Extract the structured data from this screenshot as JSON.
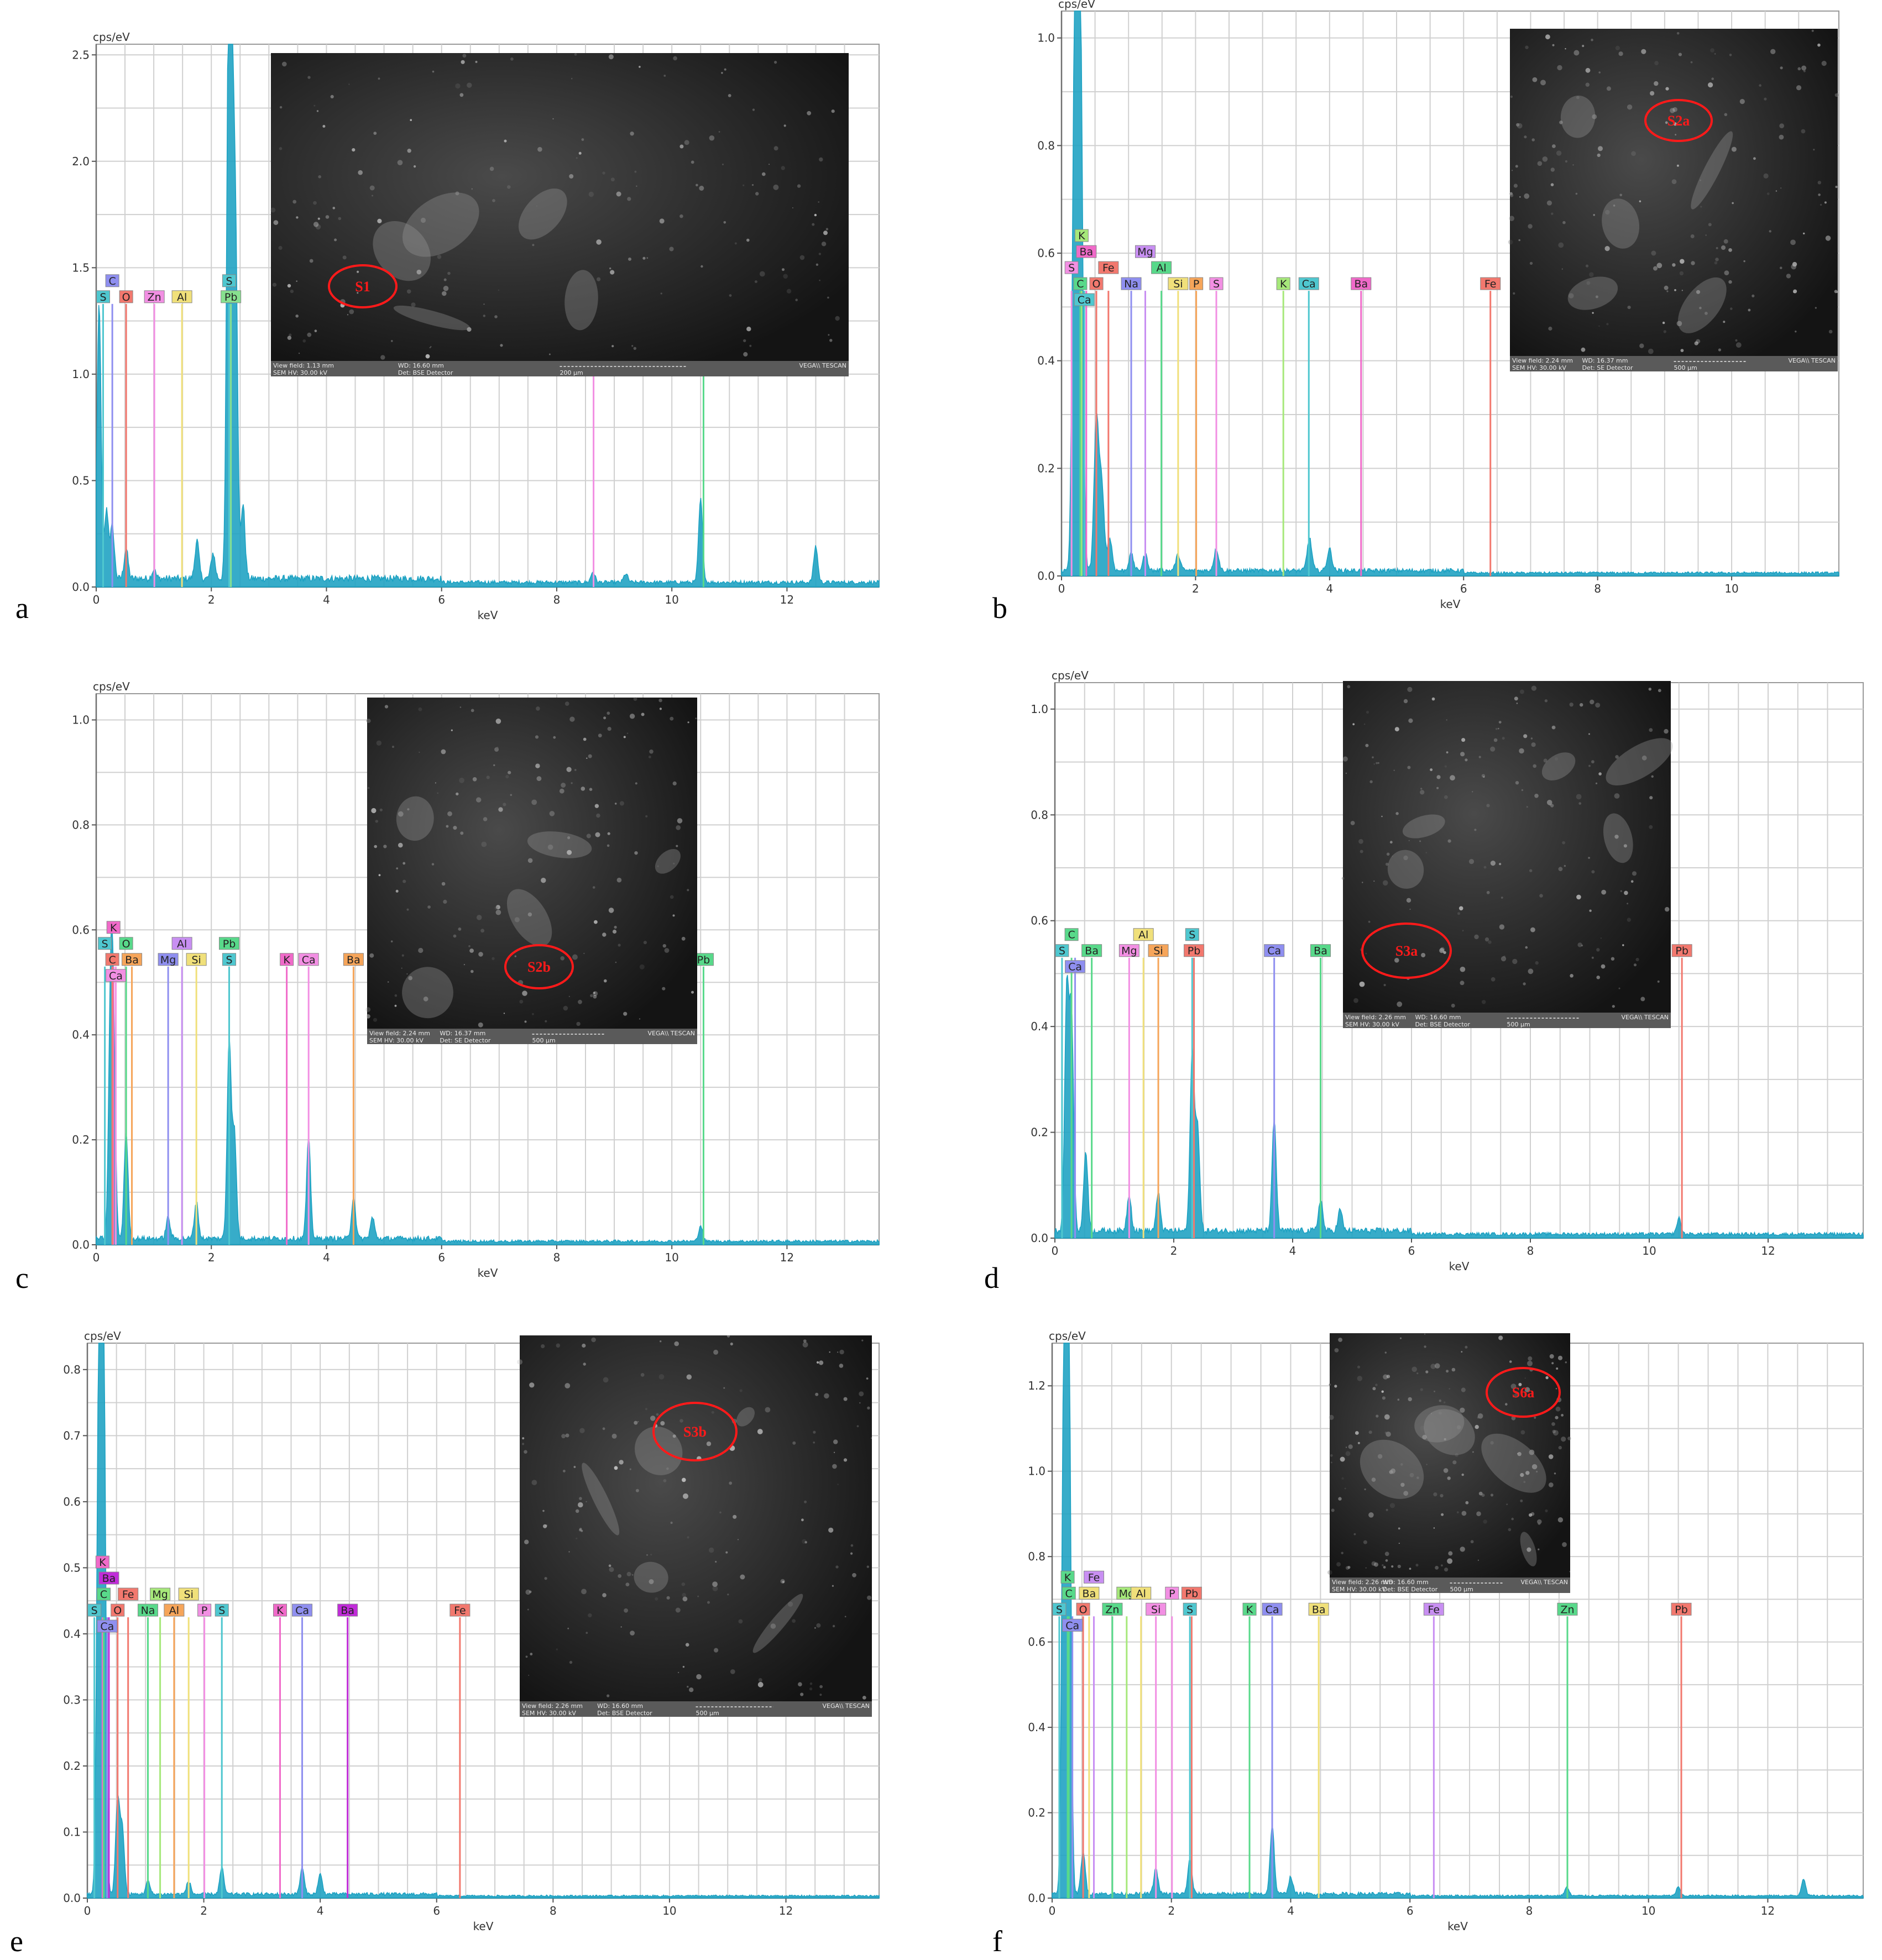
{
  "chart_data": [
    {
      "type": "line",
      "panel_label": "a",
      "ylabel": "cps/eV",
      "xlabel": "keV",
      "xlim": [
        0,
        13.6
      ],
      "ylim": [
        0,
        2.55
      ],
      "xticks": [
        0,
        2,
        4,
        6,
        8,
        10,
        12
      ],
      "yticks": [
        0.0,
        0.5,
        1.0,
        1.5,
        2.0,
        2.5
      ],
      "ytick_labels": [
        "0.0",
        "0.5",
        "1.0",
        "1.5",
        "2.0",
        "2.5"
      ],
      "spectrum_peaks": [
        [
          0.05,
          1.28
        ],
        [
          0.18,
          0.32
        ],
        [
          0.28,
          0.24
        ],
        [
          0.52,
          0.14
        ],
        [
          1.0,
          0.04
        ],
        [
          1.75,
          0.18
        ],
        [
          2.03,
          0.12
        ],
        [
          2.3,
          2.39
        ],
        [
          2.35,
          2.1
        ],
        [
          2.42,
          1.6
        ],
        [
          2.55,
          0.35
        ],
        [
          8.63,
          0.05
        ],
        [
          9.2,
          0.04
        ],
        [
          10.5,
          0.39
        ],
        [
          12.5,
          0.17
        ]
      ],
      "baseline": 0.04,
      "element_markers": [
        {
          "label": "S",
          "keV": 0.12,
          "row": 0,
          "color": "#4fc7cf"
        },
        {
          "label": "C",
          "keV": 0.28,
          "row": 1,
          "color": "#8f8ff0"
        },
        {
          "label": "O",
          "keV": 0.52,
          "row": 0,
          "color": "#f2786e"
        },
        {
          "label": "Zn",
          "keV": 1.01,
          "row": 0,
          "color": "#f28fe3"
        },
        {
          "label": "Al",
          "keV": 1.49,
          "row": 0,
          "color": "#f0e07a"
        },
        {
          "label": "S",
          "keV": 2.31,
          "row": 1,
          "color": "#4fc7cf"
        },
        {
          "label": "Pb",
          "keV": 2.34,
          "row": 0,
          "color": "#87e08f"
        },
        {
          "label": "Zn",
          "keV": 8.64,
          "row": 0,
          "color": "#f28fe3"
        },
        {
          "label": "Pb",
          "keV": 10.55,
          "row": 0,
          "color": "#58d98a"
        }
      ],
      "marker_y": 1.33,
      "inset": {
        "region_label": "S1",
        "scale": "200 µm",
        "view_field": "View field: 1.13 mm",
        "wd": "WD: 16.60 mm",
        "hv": "SEM HV: 30.00 kV",
        "det": "Det: BSE Detector",
        "brand": "VEGA\\\\ TESCAN"
      }
    },
    {
      "type": "line",
      "panel_label": "b",
      "ylabel": "cps/eV",
      "xlabel": "keV",
      "xlim": [
        0,
        11.6
      ],
      "ylim": [
        0,
        1.05
      ],
      "xticks": [
        0,
        2,
        4,
        6,
        8,
        10
      ],
      "yticks": [
        0.0,
        0.2,
        0.4,
        0.6,
        0.8,
        1.0
      ],
      "ytick_labels": [
        "0.0",
        "0.2",
        "0.4",
        "0.6",
        "0.8",
        "1.0"
      ],
      "spectrum_peaks": [
        [
          0.2,
          1.05
        ],
        [
          0.28,
          1.05
        ],
        [
          0.52,
          0.28
        ],
        [
          0.6,
          0.16
        ],
        [
          0.72,
          0.06
        ],
        [
          1.04,
          0.03
        ],
        [
          1.25,
          0.03
        ],
        [
          1.74,
          0.03
        ],
        [
          2.31,
          0.04
        ],
        [
          3.7,
          0.06
        ],
        [
          4.0,
          0.04
        ]
      ],
      "baseline": 0.01,
      "element_markers": [
        {
          "label": "K",
          "keV": 0.3,
          "row": 3,
          "color": "#a6e87a"
        },
        {
          "label": "Ba",
          "keV": 0.37,
          "row": 2,
          "color": "#f06ac9"
        },
        {
          "label": "S",
          "keV": 0.15,
          "row": 1,
          "color": "#f28fe3"
        },
        {
          "label": "Mg",
          "keV": 1.25,
          "row": 2,
          "color": "#c88ff2"
        },
        {
          "label": "Fe",
          "keV": 0.7,
          "row": 1,
          "color": "#f2786e"
        },
        {
          "label": "Al",
          "keV": 1.49,
          "row": 1,
          "color": "#58d98a"
        },
        {
          "label": "C",
          "keV": 0.28,
          "row": 0,
          "color": "#58d98a"
        },
        {
          "label": "O",
          "keV": 0.52,
          "row": 0,
          "color": "#f2786e"
        },
        {
          "label": "Na",
          "keV": 1.04,
          "row": 0,
          "color": "#8f8ff0"
        },
        {
          "label": "Si",
          "keV": 1.74,
          "row": 0,
          "color": "#f0e07a"
        },
        {
          "label": "P",
          "keV": 2.01,
          "row": 0,
          "color": "#f6a55a"
        },
        {
          "label": "S",
          "keV": 2.31,
          "row": 0,
          "color": "#f28fe3"
        },
        {
          "label": "K",
          "keV": 3.31,
          "row": 0,
          "color": "#a6e87a"
        },
        {
          "label": "Ca",
          "keV": 3.69,
          "row": 0,
          "color": "#4fc7cf"
        },
        {
          "label": "Ba",
          "keV": 4.47,
          "row": 0,
          "color": "#f06ac9"
        },
        {
          "label": "Fe",
          "keV": 6.4,
          "row": 0,
          "color": "#f2786e"
        },
        {
          "label": "Ca",
          "keV": 0.34,
          "row": -1,
          "color": "#4fc7cf"
        }
      ],
      "marker_y": 0.53,
      "inset": {
        "region_label": "S2a",
        "scale": "500 µm",
        "view_field": "View field: 2.24 mm",
        "wd": "WD: 16.37 mm",
        "hv": "SEM HV: 30.00 kV",
        "det": "Det: SE Detector",
        "brand": "VEGA\\\\ TESCAN"
      }
    },
    {
      "type": "line",
      "panel_label": "c",
      "ylabel": "cps/eV",
      "xlabel": "keV",
      "xlim": [
        0,
        13.6
      ],
      "ylim": [
        0,
        1.05
      ],
      "xticks": [
        0,
        2,
        4,
        6,
        8,
        10,
        12
      ],
      "yticks": [
        0.0,
        0.2,
        0.4,
        0.6,
        0.8,
        1.0
      ],
      "ytick_labels": [
        "0.0",
        "0.2",
        "0.4",
        "0.6",
        "0.8",
        "1.0"
      ],
      "spectrum_peaks": [
        [
          0.25,
          0.42
        ],
        [
          0.3,
          0.35
        ],
        [
          0.52,
          0.2
        ],
        [
          1.25,
          0.04
        ],
        [
          1.74,
          0.07
        ],
        [
          2.31,
          0.38
        ],
        [
          2.4,
          0.2
        ],
        [
          3.69,
          0.19
        ],
        [
          4.47,
          0.08
        ],
        [
          4.8,
          0.04
        ],
        [
          10.5,
          0.03
        ]
      ],
      "baseline": 0.012,
      "element_markers": [
        {
          "label": "K",
          "keV": 0.3,
          "row": 2,
          "color": "#f06ac9"
        },
        {
          "label": "S",
          "keV": 0.15,
          "row": 1,
          "color": "#4fc7cf"
        },
        {
          "label": "O",
          "keV": 0.52,
          "row": 1,
          "color": "#58d98a"
        },
        {
          "label": "Al",
          "keV": 1.49,
          "row": 1,
          "color": "#c88ff2"
        },
        {
          "label": "Pb",
          "keV": 2.31,
          "row": 1,
          "color": "#58d98a"
        },
        {
          "label": "C",
          "keV": 0.28,
          "row": 0,
          "color": "#f2786e"
        },
        {
          "label": "Ba",
          "keV": 0.62,
          "row": 0,
          "color": "#f6a55a"
        },
        {
          "label": "Mg",
          "keV": 1.25,
          "row": 0,
          "color": "#8f8ff0"
        },
        {
          "label": "Si",
          "keV": 1.74,
          "row": 0,
          "color": "#f0e07a"
        },
        {
          "label": "S",
          "keV": 2.31,
          "row": 0,
          "color": "#4fc7cf"
        },
        {
          "label": "K",
          "keV": 3.31,
          "row": 0,
          "color": "#f06ac9"
        },
        {
          "label": "Ca",
          "keV": 3.69,
          "row": 0,
          "color": "#f28fe3"
        },
        {
          "label": "Ba",
          "keV": 4.47,
          "row": 0,
          "color": "#f6a55a"
        },
        {
          "label": "Pb",
          "keV": 10.55,
          "row": 0,
          "color": "#58d98a"
        },
        {
          "label": "Ca",
          "keV": 0.34,
          "row": -1,
          "color": "#f28fe3"
        }
      ],
      "marker_y": 0.53,
      "inset": {
        "region_label": "S2b",
        "scale": "500 µm",
        "view_field": "View field: 2.24 mm",
        "wd": "WD: 16.37 mm",
        "hv": "SEM HV: 30.00 kV",
        "det": "Det: SE Detector",
        "brand": "VEGA\\\\ TESCAN"
      }
    },
    {
      "type": "line",
      "panel_label": "d",
      "ylabel": "cps/eV",
      "xlabel": "keV",
      "xlim": [
        0,
        13.6
      ],
      "ylim": [
        0,
        1.05
      ],
      "xticks": [
        0,
        2,
        4,
        6,
        8,
        10,
        12
      ],
      "yticks": [
        0.0,
        0.2,
        0.4,
        0.6,
        0.8,
        1.0
      ],
      "ytick_labels": [
        "0.0",
        "0.2",
        "0.4",
        "0.6",
        "0.8",
        "1.0"
      ],
      "spectrum_peaks": [
        [
          0.2,
          0.45
        ],
        [
          0.28,
          0.4
        ],
        [
          0.52,
          0.15
        ],
        [
          1.25,
          0.07
        ],
        [
          1.74,
          0.07
        ],
        [
          2.31,
          0.34
        ],
        [
          2.4,
          0.2
        ],
        [
          3.69,
          0.21
        ],
        [
          4.47,
          0.06
        ],
        [
          4.8,
          0.04
        ],
        [
          10.5,
          0.03
        ]
      ],
      "baseline": 0.014,
      "element_markers": [
        {
          "label": "C",
          "keV": 0.28,
          "row": 1,
          "color": "#58d98a"
        },
        {
          "label": "Al",
          "keV": 1.49,
          "row": 1,
          "color": "#f0e07a"
        },
        {
          "label": "S",
          "keV": 2.31,
          "row": 1,
          "color": "#4fc7cf"
        },
        {
          "label": "S",
          "keV": 0.12,
          "row": 0,
          "color": "#4fc7cf"
        },
        {
          "label": "Ba",
          "keV": 0.62,
          "row": 0,
          "color": "#58d98a"
        },
        {
          "label": "Mg",
          "keV": 1.25,
          "row": 0,
          "color": "#f28fe3"
        },
        {
          "label": "Si",
          "keV": 1.74,
          "row": 0,
          "color": "#f6a55a"
        },
        {
          "label": "Pb",
          "keV": 2.34,
          "row": 0,
          "color": "#f2786e"
        },
        {
          "label": "Ca",
          "keV": 3.69,
          "row": 0,
          "color": "#8f8ff0"
        },
        {
          "label": "Ba",
          "keV": 4.47,
          "row": 0,
          "color": "#58d98a"
        },
        {
          "label": "Pb",
          "keV": 10.55,
          "row": 0,
          "color": "#f2786e"
        },
        {
          "label": "Ca",
          "keV": 0.34,
          "row": -1,
          "color": "#8f8ff0"
        }
      ],
      "marker_y": 0.53,
      "inset": {
        "region_label": "S3a",
        "scale": "500 µm",
        "view_field": "View field: 2.26 mm",
        "wd": "WD: 16.60 mm",
        "hv": "SEM HV: 30.00 kV",
        "det": "Det: BSE Detector",
        "brand": "VEGA\\\\ TESCAN"
      }
    },
    {
      "type": "line",
      "panel_label": "e",
      "ylabel": "cps/eV",
      "xlabel": "keV",
      "xlim": [
        0,
        13.6
      ],
      "ylim": [
        0,
        0.84
      ],
      "xticks": [
        0,
        2,
        4,
        6,
        8,
        10,
        12
      ],
      "yticks": [
        0.0,
        0.1,
        0.2,
        0.3,
        0.4,
        0.5,
        0.6,
        0.7,
        0.8
      ],
      "ytick_labels": [
        "0.0",
        "0.1",
        "0.2",
        "0.3",
        "0.4",
        "0.5",
        "0.6",
        "0.7",
        "0.8"
      ],
      "spectrum_peaks": [
        [
          0.2,
          0.84
        ],
        [
          0.28,
          0.84
        ],
        [
          0.52,
          0.14
        ],
        [
          0.6,
          0.1
        ],
        [
          1.04,
          0.02
        ],
        [
          1.74,
          0.02
        ],
        [
          2.31,
          0.04
        ],
        [
          3.69,
          0.04
        ],
        [
          4.0,
          0.03
        ]
      ],
      "baseline": 0.006,
      "element_markers": [
        {
          "label": "K",
          "keV": 0.26,
          "row": 3,
          "color": "#f06ac9"
        },
        {
          "label": "Ba",
          "keV": 0.37,
          "row": 2,
          "color": "#c12bd9"
        },
        {
          "label": "C",
          "keV": 0.28,
          "row": 1,
          "color": "#58d98a"
        },
        {
          "label": "Fe",
          "keV": 0.7,
          "row": 1,
          "color": "#f2786e"
        },
        {
          "label": "Mg",
          "keV": 1.25,
          "row": 1,
          "color": "#a6e87a"
        },
        {
          "label": "Si",
          "keV": 1.74,
          "row": 1,
          "color": "#f0e07a"
        },
        {
          "label": "S",
          "keV": 0.12,
          "row": 0,
          "color": "#4fc7cf"
        },
        {
          "label": "O",
          "keV": 0.52,
          "row": 0,
          "color": "#f2786e"
        },
        {
          "label": "Na",
          "keV": 1.04,
          "row": 0,
          "color": "#58d98a"
        },
        {
          "label": "Al",
          "keV": 1.49,
          "row": 0,
          "color": "#f6a55a"
        },
        {
          "label": "P",
          "keV": 2.01,
          "row": 0,
          "color": "#f28fe3"
        },
        {
          "label": "S",
          "keV": 2.31,
          "row": 0,
          "color": "#4fc7cf"
        },
        {
          "label": "K",
          "keV": 3.31,
          "row": 0,
          "color": "#f06ac9"
        },
        {
          "label": "Ca",
          "keV": 3.69,
          "row": 0,
          "color": "#8f8ff0"
        },
        {
          "label": "Ba",
          "keV": 4.47,
          "row": 0,
          "color": "#c12bd9"
        },
        {
          "label": "Fe",
          "keV": 6.4,
          "row": 0,
          "color": "#f2786e"
        },
        {
          "label": "Ca",
          "keV": 0.34,
          "row": -1,
          "color": "#8f8ff0"
        }
      ],
      "marker_y": 0.425,
      "inset": {
        "region_label": "S3b",
        "scale": "500 µm",
        "view_field": "View field: 2.26 mm",
        "wd": "WD: 16.60 mm",
        "hv": "SEM HV: 30.00 kV",
        "det": "Det: BSE Detector",
        "brand": "VEGA\\\\ TESCAN"
      }
    },
    {
      "type": "line",
      "panel_label": "f",
      "ylabel": "cps/eV",
      "xlabel": "keV",
      "xlim": [
        0,
        13.6
      ],
      "ylim": [
        0,
        1.3
      ],
      "xticks": [
        0,
        2,
        4,
        6,
        8,
        10,
        12
      ],
      "yticks": [
        0.0,
        0.2,
        0.4,
        0.6,
        0.8,
        1.0,
        1.2
      ],
      "ytick_labels": [
        "0.0",
        "0.2",
        "0.4",
        "0.6",
        "0.8",
        "1.0",
        "1.2"
      ],
      "spectrum_peaks": [
        [
          0.2,
          1.3
        ],
        [
          0.28,
          1.3
        ],
        [
          0.52,
          0.1
        ],
        [
          1.74,
          0.06
        ],
        [
          2.31,
          0.08
        ],
        [
          3.69,
          0.16
        ],
        [
          4.0,
          0.04
        ],
        [
          8.63,
          0.02
        ],
        [
          10.5,
          0.02
        ],
        [
          12.6,
          0.04
        ]
      ],
      "baseline": 0.01,
      "element_markers": [
        {
          "label": "K",
          "keV": 0.26,
          "row": 2,
          "color": "#58d98a"
        },
        {
          "label": "Fe",
          "keV": 0.7,
          "row": 2,
          "color": "#c88ff2"
        },
        {
          "label": "C",
          "keV": 0.28,
          "row": 1,
          "color": "#58d98a"
        },
        {
          "label": "Ba",
          "keV": 0.62,
          "row": 1,
          "color": "#f0e07a"
        },
        {
          "label": "Mg",
          "keV": 1.25,
          "row": 1,
          "color": "#a6e87a"
        },
        {
          "label": "Al",
          "keV": 1.49,
          "row": 1,
          "color": "#f0e07a"
        },
        {
          "label": "P",
          "keV": 2.01,
          "row": 1,
          "color": "#f28fe3"
        },
        {
          "label": "Pb",
          "keV": 2.34,
          "row": 1,
          "color": "#f2786e"
        },
        {
          "label": "S",
          "keV": 0.12,
          "row": 0,
          "color": "#4fc7cf"
        },
        {
          "label": "O",
          "keV": 0.52,
          "row": 0,
          "color": "#f2786e"
        },
        {
          "label": "Zn",
          "keV": 1.01,
          "row": 0,
          "color": "#58d98a"
        },
        {
          "label": "Si",
          "keV": 1.74,
          "row": 0,
          "color": "#f28fe3"
        },
        {
          "label": "S",
          "keV": 2.31,
          "row": 0,
          "color": "#4fc7cf"
        },
        {
          "label": "K",
          "keV": 3.31,
          "row": 0,
          "color": "#58d98a"
        },
        {
          "label": "Ca",
          "keV": 3.69,
          "row": 0,
          "color": "#8f8ff0"
        },
        {
          "label": "Ba",
          "keV": 4.47,
          "row": 0,
          "color": "#f0e07a"
        },
        {
          "label": "Fe",
          "keV": 6.4,
          "row": 0,
          "color": "#c88ff2"
        },
        {
          "label": "Zn",
          "keV": 8.64,
          "row": 0,
          "color": "#58d98a"
        },
        {
          "label": "Pb",
          "keV": 10.55,
          "row": 0,
          "color": "#f2786e"
        },
        {
          "label": "Ca",
          "keV": 0.34,
          "row": -1,
          "color": "#8f8ff0"
        }
      ],
      "marker_y": 0.66,
      "inset": {
        "region_label": "S6a",
        "scale": "500 µm",
        "view_field": "View field: 2.26 mm",
        "wd": "WD: 16.60 mm",
        "hv": "SEM HV: 30.00 kV",
        "det": "Det: BSE Detector",
        "brand": "VEGA\\\\ TESCAN"
      }
    }
  ],
  "style": {
    "spectrum_color": "#1ba1c2",
    "grid_color": "#d0d0d0"
  }
}
